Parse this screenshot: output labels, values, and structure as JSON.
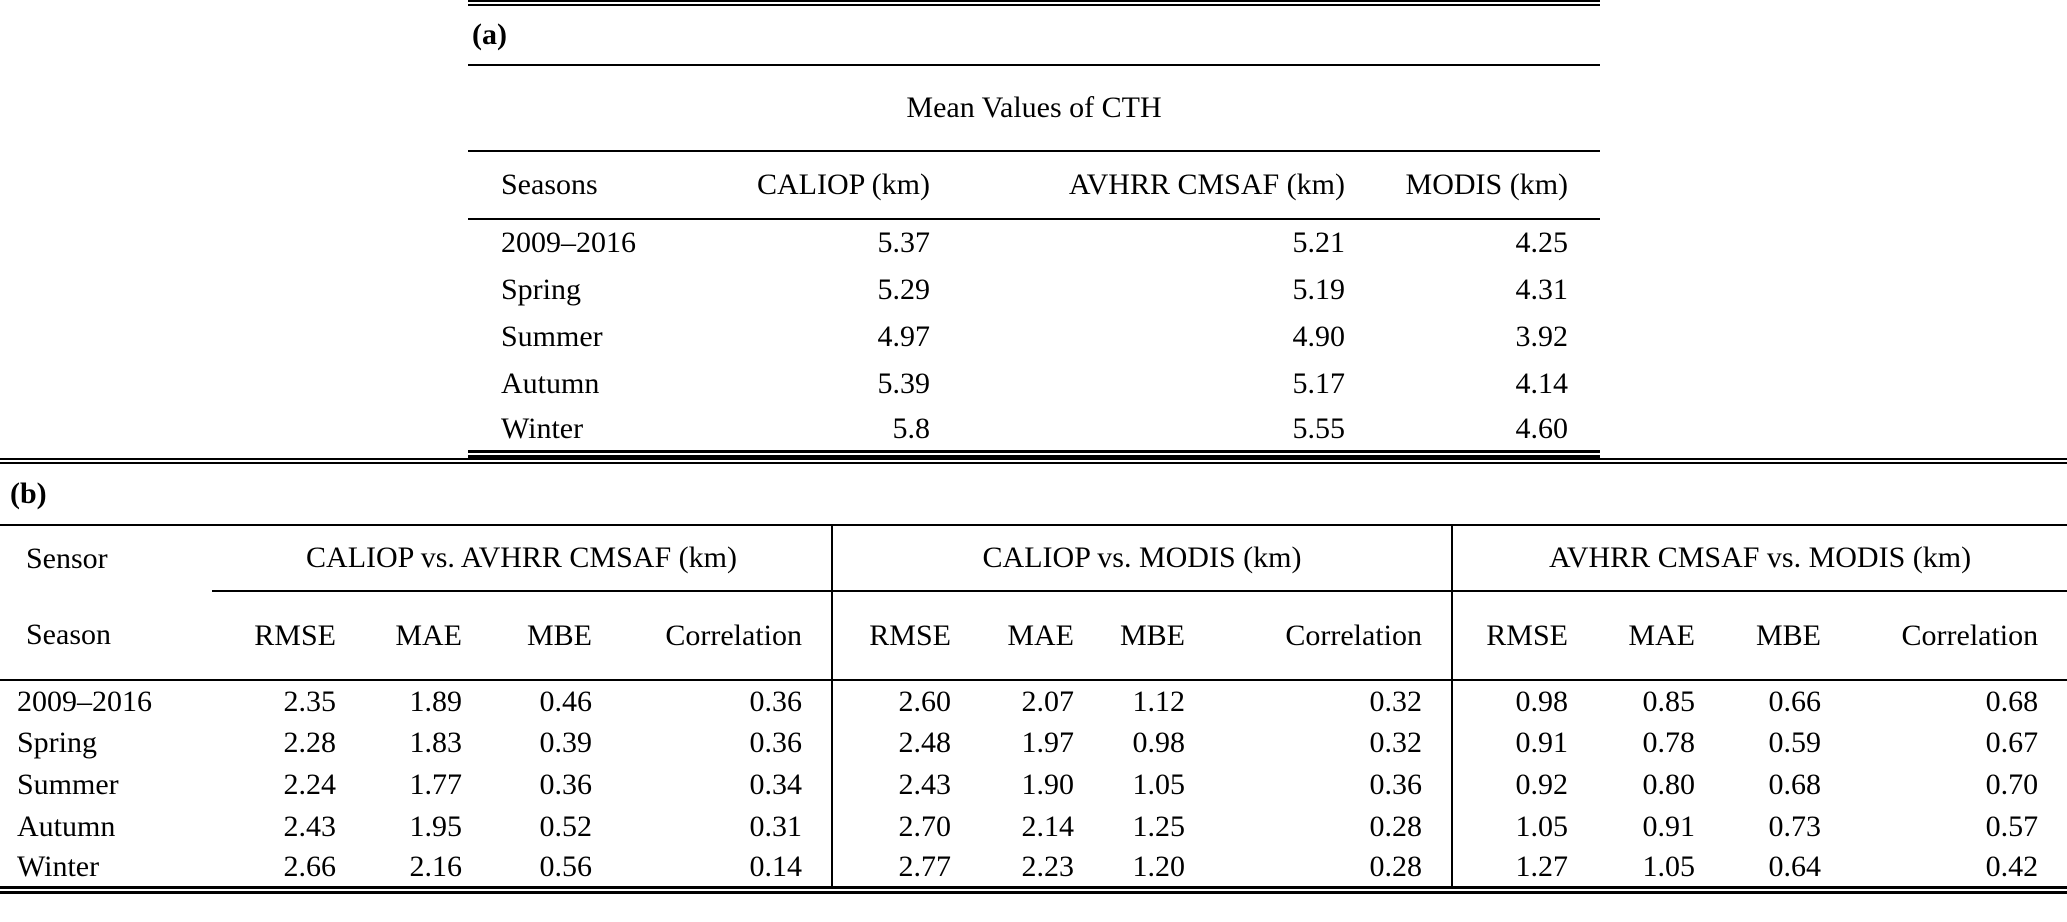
{
  "table_a": {
    "label": "(a)",
    "title": "Mean Values of CTH",
    "columns": [
      "Seasons",
      "CALIOP (km)",
      "AVHRR CMSAF (km)",
      "MODIS (km)"
    ],
    "rows": [
      [
        "2009–2016",
        "5.37",
        "5.21",
        "4.25"
      ],
      [
        "Spring",
        "5.29",
        "5.19",
        "4.31"
      ],
      [
        "Summer",
        "4.97",
        "4.90",
        "3.92"
      ],
      [
        "Autumn",
        "5.39",
        "5.17",
        "4.14"
      ],
      [
        "Winter",
        "5.8",
        "5.55",
        "4.60"
      ]
    ]
  },
  "table_b": {
    "label": "(b)",
    "corner_top": "Sensor",
    "corner_bottom": "Season",
    "groups": [
      "CALIOP vs. AVHRR CMSAF (km)",
      "CALIOP vs. MODIS (km)",
      "AVHRR CMSAF vs. MODIS (km)"
    ],
    "metrics": [
      "RMSE",
      "MAE",
      "MBE",
      "Correlation"
    ],
    "rows": [
      [
        "2009–2016",
        "2.35",
        "1.89",
        "0.46",
        "0.36",
        "2.60",
        "2.07",
        "1.12",
        "0.32",
        "0.98",
        "0.85",
        "0.66",
        "0.68"
      ],
      [
        "Spring",
        "2.28",
        "1.83",
        "0.39",
        "0.36",
        "2.48",
        "1.97",
        "0.98",
        "0.32",
        "0.91",
        "0.78",
        "0.59",
        "0.67"
      ],
      [
        "Summer",
        "2.24",
        "1.77",
        "0.36",
        "0.34",
        "2.43",
        "1.90",
        "1.05",
        "0.36",
        "0.92",
        "0.80",
        "0.68",
        "0.70"
      ],
      [
        "Autumn",
        "2.43",
        "1.95",
        "0.52",
        "0.31",
        "2.70",
        "2.14",
        "1.25",
        "0.28",
        "1.05",
        "0.91",
        "0.73",
        "0.57"
      ],
      [
        "Winter",
        "2.66",
        "2.16",
        "0.56",
        "0.14",
        "2.77",
        "2.23",
        "1.20",
        "0.28",
        "1.27",
        "1.05",
        "0.64",
        "0.42"
      ]
    ]
  }
}
